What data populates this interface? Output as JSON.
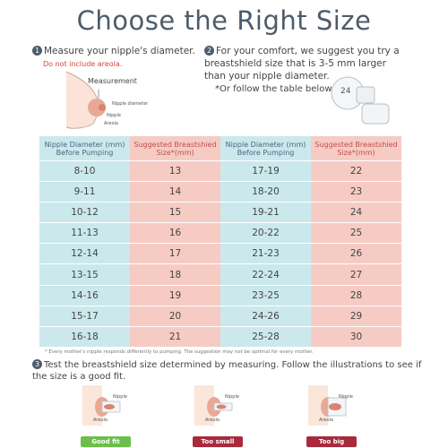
{
  "title": "Choose the Right Size",
  "step1": {
    "number": "1",
    "text": "Measure your nipple's diameter.",
    "note": "Do not include areola.",
    "measurement": "Measurement",
    "nipple_diameter": "Nipple diameter",
    "nipple": "Nipple",
    "areola": "Areola"
  },
  "step2": {
    "number": "2",
    "text": "For your comfort, we suggest you try a breastshield size that is 3-5 mm larger than your nipple diameter.",
    "note": "*Or follow the table below.",
    "icon_label": "24"
  },
  "table": {
    "headers": [
      "Nipple Diameter (mm) Before Pumping",
      "Suggested Breastshied Size*(mm)",
      "Nipple Diameter (mm) Before Pumping",
      "Suggested Breastshied Size*(mm)"
    ],
    "rows": [
      [
        "8-10",
        "13",
        "17-19",
        "22"
      ],
      [
        "9-11",
        "14",
        "18-20",
        "23"
      ],
      [
        "10-12",
        "15",
        "19-21",
        "24"
      ],
      [
        "11-13",
        "16",
        "20-22",
        "25"
      ],
      [
        "12-14",
        "17",
        "21-23",
        "26"
      ],
      [
        "13-15",
        "18",
        "22-24",
        "27"
      ],
      [
        "14-16",
        "19",
        "23-25",
        "28"
      ],
      [
        "15-17",
        "20",
        "24-26",
        "29"
      ],
      [
        "16-18",
        "21",
        "25-28",
        "30"
      ]
    ]
  },
  "footnote": "* Every mother's nipple responds differently to pumping. The suggestion may not be optimal for every mother.",
  "step3": {
    "number": "3",
    "text": "Test the breastshield size determined by measuring. Follow the illustrations to see if the size is a good fit."
  },
  "fits": [
    {
      "nipple": "Nipple",
      "areola": "Areola",
      "label": "Good fit",
      "color": "#6cbf4a"
    },
    {
      "nipple": "Nipple",
      "areola": "Areola",
      "label": "Too small",
      "color": "#a82a3c"
    },
    {
      "nipple": "Nipple",
      "areola": "Areola",
      "label": "Too big",
      "color": "#a82a3c"
    }
  ]
}
